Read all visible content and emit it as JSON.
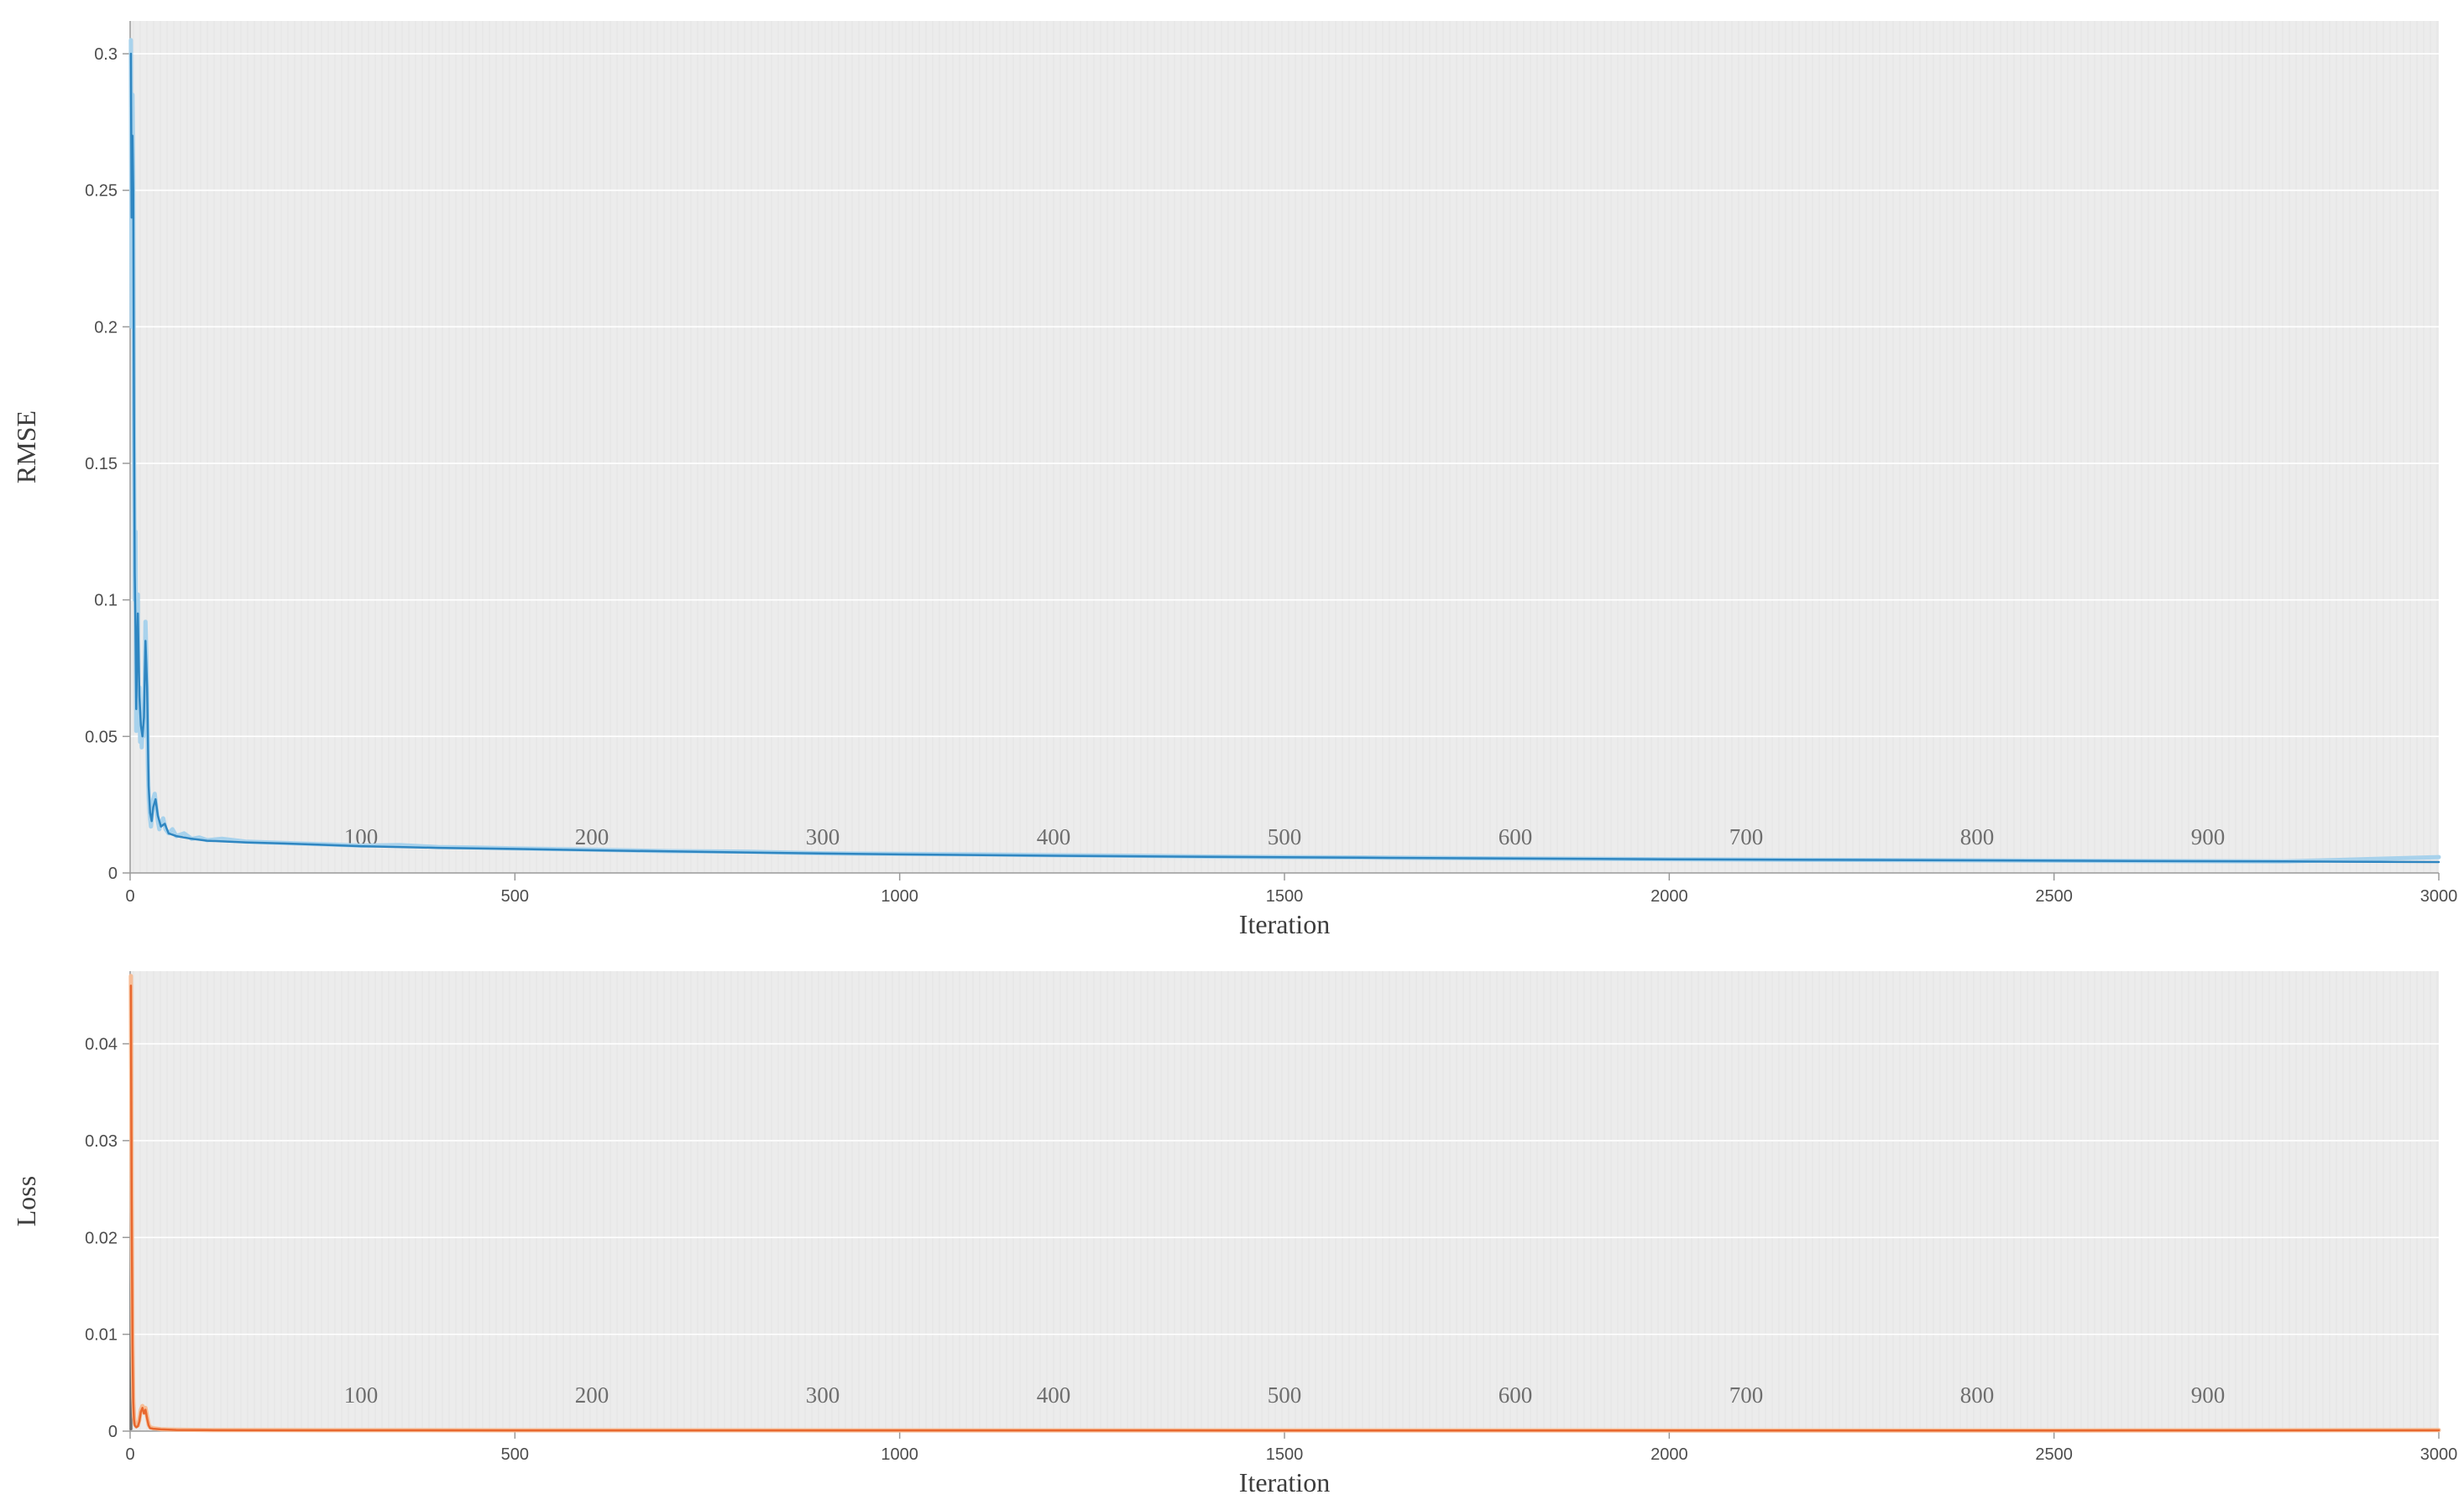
{
  "figure": {
    "description": "Training progress figure with two stacked line plots: RMSE vs Iteration and Loss vs Iteration"
  },
  "style": {
    "plot_bg": "#ececec",
    "stripe": "#e3e3e3",
    "grid": "#ffffff",
    "axis": "#9a9a9a",
    "tick_text": "#4d4d4d",
    "epoch_text": "#6e6e6e",
    "label_text": "#3d3d3d"
  },
  "chart_data": [
    {
      "id": "rmse",
      "type": "line",
      "title": "",
      "xlabel": "Iteration",
      "ylabel": "RMSE",
      "xlim": [
        0,
        3000
      ],
      "ylim": [
        0,
        0.312
      ],
      "xticks": [
        0,
        500,
        1000,
        1500,
        2000,
        2500,
        3000
      ],
      "xtick_labels": [
        "0",
        "500",
        "1000",
        "1500",
        "2000",
        "2500",
        "3000"
      ],
      "yticks": [
        0,
        0.05,
        0.1,
        0.15,
        0.2,
        0.25,
        0.3
      ],
      "ytick_labels": [
        "0",
        "0.05",
        "0.1",
        "0.15",
        "0.2",
        "0.25",
        "0.3"
      ],
      "grid": "horizontal white gridlines on gray background",
      "legend": "none",
      "epoch_labels": {
        "labels": [
          "100",
          "200",
          "300",
          "400",
          "500",
          "600",
          "700",
          "800",
          "900"
        ],
        "x": [
          300,
          600,
          900,
          1200,
          1500,
          1800,
          2100,
          2400,
          2700
        ]
      },
      "series": [
        {
          "name": "rmse-raw",
          "color": "#a8d2ec",
          "width": 5,
          "points": [
            [
              1,
              0.305
            ],
            [
              2,
              0.2
            ],
            [
              3,
              0.285
            ],
            [
              4,
              0.255
            ],
            [
              5,
              0.16
            ],
            [
              6,
              0.1
            ],
            [
              7,
              0.125
            ],
            [
              8,
              0.052
            ],
            [
              9,
              0.075
            ],
            [
              10,
              0.102
            ],
            [
              11,
              0.055
            ],
            [
              12,
              0.068
            ],
            [
              13,
              0.048
            ],
            [
              14,
              0.058
            ],
            [
              15,
              0.046
            ],
            [
              16,
              0.054
            ],
            [
              17,
              0.05
            ],
            [
              18,
              0.06
            ],
            [
              19,
              0.07
            ],
            [
              20,
              0.092
            ],
            [
              21,
              0.08
            ],
            [
              22,
              0.065
            ],
            [
              23,
              0.04
            ],
            [
              24,
              0.028
            ],
            [
              25,
              0.024
            ],
            [
              26,
              0.02
            ],
            [
              27,
              0.017
            ],
            [
              28,
              0.02
            ],
            [
              29,
              0.025
            ],
            [
              30,
              0.027
            ],
            [
              32,
              0.029
            ],
            [
              34,
              0.024
            ],
            [
              36,
              0.019
            ],
            [
              38,
              0.016
            ],
            [
              40,
              0.018
            ],
            [
              43,
              0.02
            ],
            [
              46,
              0.016
            ],
            [
              50,
              0.0145
            ],
            [
              55,
              0.016
            ],
            [
              60,
              0.0135
            ],
            [
              70,
              0.0145
            ],
            [
              80,
              0.0125
            ],
            [
              90,
              0.013
            ],
            [
              100,
              0.012
            ],
            [
              120,
              0.0125
            ],
            [
              150,
              0.0115
            ],
            [
              200,
              0.011
            ],
            [
              250,
              0.0105
            ],
            [
              300,
              0.01
            ],
            [
              350,
              0.0102
            ],
            [
              400,
              0.0095
            ],
            [
              450,
              0.0093
            ],
            [
              500,
              0.009
            ],
            [
              600,
              0.0085
            ],
            [
              700,
              0.008
            ],
            [
              800,
              0.0078
            ],
            [
              900,
              0.0072
            ],
            [
              1000,
              0.007
            ],
            [
              1100,
              0.0068
            ],
            [
              1200,
              0.0065
            ],
            [
              1300,
              0.0063
            ],
            [
              1400,
              0.006
            ],
            [
              1500,
              0.0058
            ],
            [
              1600,
              0.0057
            ],
            [
              1700,
              0.0055
            ],
            [
              1800,
              0.0053
            ],
            [
              1900,
              0.0052
            ],
            [
              2000,
              0.005
            ],
            [
              2200,
              0.0048
            ],
            [
              2400,
              0.0046
            ],
            [
              2600,
              0.0044
            ],
            [
              2800,
              0.0042
            ],
            [
              3000,
              0.0058
            ]
          ]
        },
        {
          "name": "rmse-smoothed",
          "color": "#2f86c1",
          "width": 2.5,
          "points": [
            [
              1,
              0.3
            ],
            [
              2,
              0.24
            ],
            [
              3,
              0.27
            ],
            [
              4,
              0.25
            ],
            [
              5,
              0.17
            ],
            [
              6,
              0.11
            ],
            [
              7,
              0.09
            ],
            [
              8,
              0.06
            ],
            [
              9,
              0.08
            ],
            [
              10,
              0.095
            ],
            [
              12,
              0.065
            ],
            [
              14,
              0.054
            ],
            [
              16,
              0.05
            ],
            [
              18,
              0.057
            ],
            [
              20,
              0.085
            ],
            [
              22,
              0.068
            ],
            [
              24,
              0.032
            ],
            [
              26,
              0.022
            ],
            [
              28,
              0.019
            ],
            [
              30,
              0.024
            ],
            [
              33,
              0.027
            ],
            [
              36,
              0.021
            ],
            [
              40,
              0.017
            ],
            [
              45,
              0.018
            ],
            [
              50,
              0.0145
            ],
            [
              60,
              0.0135
            ],
            [
              80,
              0.0125
            ],
            [
              100,
              0.0118
            ],
            [
              150,
              0.0112
            ],
            [
              200,
              0.0108
            ],
            [
              300,
              0.0098
            ],
            [
              400,
              0.0092
            ],
            [
              500,
              0.0088
            ],
            [
              600,
              0.0083
            ],
            [
              700,
              0.0079
            ],
            [
              800,
              0.0075
            ],
            [
              1000,
              0.0068
            ],
            [
              1200,
              0.0063
            ],
            [
              1400,
              0.0059
            ],
            [
              1600,
              0.0056
            ],
            [
              1800,
              0.0053
            ],
            [
              2000,
              0.005
            ],
            [
              2200,
              0.0048
            ],
            [
              2400,
              0.0046
            ],
            [
              2600,
              0.0044
            ],
            [
              2800,
              0.0042
            ],
            [
              3000,
              0.004
            ]
          ]
        }
      ]
    },
    {
      "id": "loss",
      "type": "line",
      "title": "",
      "xlabel": "Iteration",
      "ylabel": "Loss",
      "xlim": [
        0,
        3000
      ],
      "ylim": [
        0,
        0.0475
      ],
      "xticks": [
        0,
        500,
        1000,
        1500,
        2000,
        2500,
        3000
      ],
      "xtick_labels": [
        "0",
        "500",
        "1000",
        "1500",
        "2000",
        "2500",
        "3000"
      ],
      "yticks": [
        0,
        0.01,
        0.02,
        0.03,
        0.04
      ],
      "ytick_labels": [
        "0",
        "0.01",
        "0.02",
        "0.03",
        "0.04"
      ],
      "grid": "horizontal white gridlines on gray background",
      "legend": "none",
      "epoch_labels": {
        "labels": [
          "100",
          "200",
          "300",
          "400",
          "500",
          "600",
          "700",
          "800",
          "900"
        ],
        "x": [
          300,
          600,
          900,
          1200,
          1500,
          1800,
          2100,
          2400,
          2700
        ]
      },
      "series": [
        {
          "name": "loss-start-spike",
          "color": "#6e6e6e",
          "width": 2.5,
          "points": [
            [
              0.5,
              0.0002
            ],
            [
              1,
              0.047
            ],
            [
              1.6,
              0.0002
            ]
          ]
        },
        {
          "name": "loss-raw",
          "color": "#f6bd97",
          "width": 5,
          "points": [
            [
              1,
              0.047
            ],
            [
              2,
              0.026
            ],
            [
              3,
              0.01
            ],
            [
              4,
              0.0035
            ],
            [
              5,
              0.0015
            ],
            [
              6,
              0.0008
            ],
            [
              8,
              0.0005
            ],
            [
              10,
              0.0006
            ],
            [
              12,
              0.0012
            ],
            [
              14,
              0.0022
            ],
            [
              16,
              0.0026
            ],
            [
              18,
              0.002
            ],
            [
              20,
              0.0024
            ],
            [
              22,
              0.0015
            ],
            [
              24,
              0.0007
            ],
            [
              26,
              0.0004
            ],
            [
              30,
              0.0003
            ],
            [
              40,
              0.0002
            ],
            [
              60,
              0.00015
            ],
            [
              100,
              0.0001
            ],
            [
              200,
              0.0001
            ],
            [
              500,
              9e-05
            ],
            [
              1000,
              8e-05
            ],
            [
              1500,
              8e-05
            ],
            [
              2000,
              7e-05
            ],
            [
              2500,
              7e-05
            ],
            [
              3000,
              0.0001
            ]
          ]
        },
        {
          "name": "loss-smoothed",
          "color": "#e8682f",
          "width": 2.5,
          "points": [
            [
              1,
              0.046
            ],
            [
              2,
              0.024
            ],
            [
              3,
              0.009
            ],
            [
              4,
              0.003
            ],
            [
              5,
              0.0012
            ],
            [
              6,
              0.0006
            ],
            [
              8,
              0.0004
            ],
            [
              10,
              0.0005
            ],
            [
              12,
              0.001
            ],
            [
              14,
              0.002
            ],
            [
              16,
              0.0024
            ],
            [
              18,
              0.0018
            ],
            [
              20,
              0.0022
            ],
            [
              22,
              0.0013
            ],
            [
              24,
              0.0006
            ],
            [
              26,
              0.0003
            ],
            [
              30,
              0.00025
            ],
            [
              40,
              0.00018
            ],
            [
              60,
              0.00012
            ],
            [
              100,
              0.0001
            ],
            [
              200,
              9e-05
            ],
            [
              500,
              8e-05
            ],
            [
              1000,
              8e-05
            ],
            [
              1500,
              7e-05
            ],
            [
              2000,
              7e-05
            ],
            [
              2500,
              7e-05
            ],
            [
              3000,
              9e-05
            ]
          ]
        }
      ]
    }
  ]
}
